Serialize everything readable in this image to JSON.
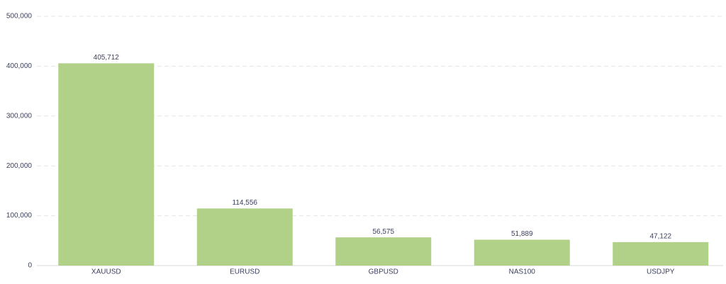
{
  "chart_data": {
    "type": "bar",
    "categories": [
      "XAUUSD",
      "EURUSD",
      "GBPUSD",
      "NAS100",
      "USDJPY"
    ],
    "values": [
      405712,
      114556,
      56575,
      51889,
      47122
    ],
    "value_labels": [
      "405,712",
      "114,556",
      "56,575",
      "51,889",
      "47,122"
    ],
    "color": "#b0d187",
    "ylim": [
      0,
      500000
    ],
    "yticks": [
      0,
      {
        "value": 100000,
        "label": "100,000"
      },
      {
        "value": 200000,
        "label": "200,000"
      },
      {
        "value": 300000,
        "label": "300,000"
      },
      {
        "value": 400000,
        "label": "400,000"
      },
      {
        "value": 500000,
        "label": "500,000"
      }
    ],
    "grid": true
  }
}
